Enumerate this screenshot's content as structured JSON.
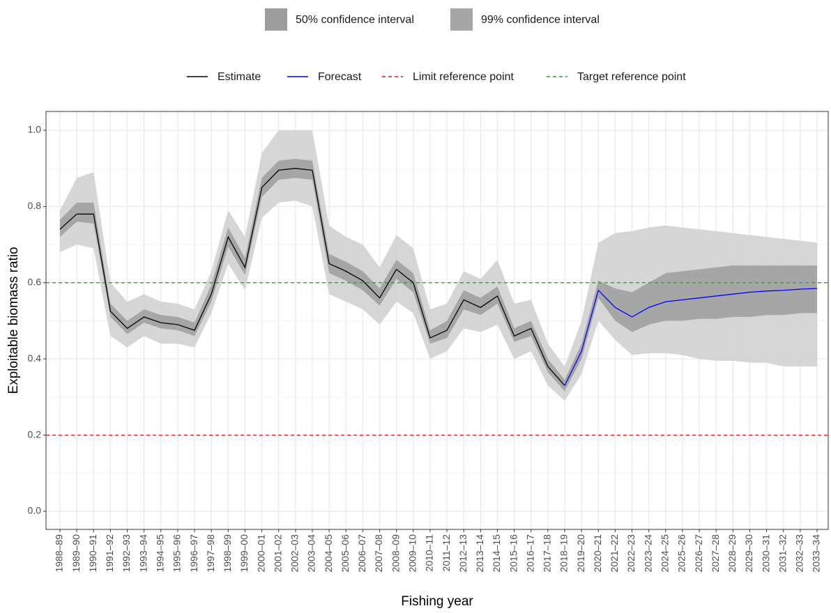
{
  "chart_data": {
    "type": "line",
    "x_label": "Fishing year",
    "y_label": "Exploitable biomass ratio",
    "categories": [
      "1988–89",
      "1989–90",
      "1990–91",
      "1991–92",
      "1992–93",
      "1993–94",
      "1994–95",
      "1995–96",
      "1996–97",
      "1997–98",
      "1998–99",
      "1999–00",
      "2000–01",
      "2001–02",
      "2002–03",
      "2003–04",
      "2004–05",
      "2005–06",
      "2006–07",
      "2007–08",
      "2008–09",
      "2009–10",
      "2010–11",
      "2011–12",
      "2012–13",
      "2013–14",
      "2014–15",
      "2015–16",
      "2016–17",
      "2017–18",
      "2018–19",
      "2019–20",
      "2020–21",
      "2021–22",
      "2022–23",
      "2023–24",
      "2024–25",
      "2025–26",
      "2026–27",
      "2027–28",
      "2028–29",
      "2029–30",
      "2030–31",
      "2031–32",
      "2032–33",
      "2033–34"
    ],
    "series": [
      {
        "name": "Estimate",
        "color": "#000000",
        "values": [
          0.74,
          0.78,
          0.78,
          0.525,
          0.48,
          0.51,
          0.495,
          0.49,
          0.475,
          0.57,
          0.72,
          0.64,
          0.85,
          0.895,
          0.9,
          0.895,
          0.65,
          0.63,
          0.605,
          0.56,
          0.635,
          0.6,
          0.455,
          0.475,
          0.555,
          0.535,
          0.565,
          0.46,
          0.48,
          0.38,
          0.33,
          null,
          null,
          null,
          null,
          null,
          null,
          null,
          null,
          null,
          null,
          null,
          null,
          null,
          null,
          null
        ]
      },
      {
        "name": "Forecast",
        "color": "#0000ff",
        "values": [
          null,
          null,
          null,
          null,
          null,
          null,
          null,
          null,
          null,
          null,
          null,
          null,
          null,
          null,
          null,
          null,
          null,
          null,
          null,
          null,
          null,
          null,
          null,
          null,
          null,
          null,
          null,
          null,
          null,
          null,
          0.33,
          0.42,
          0.58,
          0.535,
          0.51,
          0.535,
          0.55,
          0.555,
          0.56,
          0.565,
          0.57,
          0.575,
          0.578,
          0.58,
          0.583,
          0.585
        ]
      }
    ],
    "ribbons": [
      {
        "name": "99% confidence interval",
        "color": "#cfcfcf",
        "lower": [
          0.68,
          0.7,
          0.69,
          0.46,
          0.43,
          0.46,
          0.44,
          0.44,
          0.43,
          0.52,
          0.65,
          0.58,
          0.77,
          0.81,
          0.815,
          0.8,
          0.57,
          0.55,
          0.53,
          0.49,
          0.55,
          0.52,
          0.4,
          0.42,
          0.48,
          0.47,
          0.49,
          0.4,
          0.42,
          0.33,
          0.29,
          0.36,
          0.5,
          0.45,
          0.41,
          0.415,
          0.415,
          0.41,
          0.4,
          0.395,
          0.395,
          0.39,
          0.39,
          0.38,
          0.38,
          0.38
        ],
        "upper": [
          0.79,
          0.875,
          0.89,
          0.6,
          0.55,
          0.57,
          0.55,
          0.545,
          0.53,
          0.63,
          0.79,
          0.72,
          0.94,
          1.0,
          1.0,
          1.0,
          0.75,
          0.72,
          0.7,
          0.64,
          0.725,
          0.69,
          0.53,
          0.545,
          0.63,
          0.61,
          0.66,
          0.545,
          0.555,
          0.44,
          0.38,
          0.5,
          0.705,
          0.73,
          0.735,
          0.745,
          0.75,
          0.745,
          0.74,
          0.735,
          0.73,
          0.725,
          0.72,
          0.715,
          0.71,
          0.705
        ]
      },
      {
        "name": "50% confidence interval",
        "color": "#9e9e9e",
        "lower": [
          0.72,
          0.76,
          0.755,
          0.51,
          0.465,
          0.495,
          0.48,
          0.475,
          0.46,
          0.55,
          0.695,
          0.62,
          0.825,
          0.87,
          0.875,
          0.87,
          0.625,
          0.605,
          0.58,
          0.54,
          0.61,
          0.575,
          0.44,
          0.455,
          0.53,
          0.515,
          0.545,
          0.445,
          0.46,
          0.365,
          0.315,
          0.4,
          0.56,
          0.5,
          0.47,
          0.49,
          0.5,
          0.5,
          0.505,
          0.505,
          0.51,
          0.51,
          0.515,
          0.515,
          0.52,
          0.52
        ],
        "upper": [
          0.765,
          0.81,
          0.81,
          0.545,
          0.5,
          0.53,
          0.515,
          0.51,
          0.495,
          0.595,
          0.745,
          0.665,
          0.875,
          0.92,
          0.925,
          0.92,
          0.675,
          0.655,
          0.63,
          0.585,
          0.66,
          0.625,
          0.475,
          0.5,
          0.58,
          0.56,
          0.59,
          0.48,
          0.5,
          0.4,
          0.345,
          0.44,
          0.605,
          0.585,
          0.575,
          0.6,
          0.625,
          0.63,
          0.635,
          0.64,
          0.645,
          0.645,
          0.645,
          0.645,
          0.645,
          0.645
        ]
      }
    ],
    "reference_lines": [
      {
        "name": "Limit reference point",
        "value": 0.2,
        "color": "#e41a1c"
      },
      {
        "name": "Target reference point",
        "value": 0.6,
        "color": "#2ca02c"
      }
    ],
    "ylim": [
      -0.0475,
      1.0493
    ],
    "yticks": [
      {
        "value": 0,
        "label": "0.0"
      },
      {
        "value": 0.2,
        "label": "0.2"
      },
      {
        "value": 0.4,
        "label": "0.4"
      },
      {
        "value": 0.6,
        "label": "0.6"
      },
      {
        "value": 0.8,
        "label": "0.8"
      },
      {
        "value": 1,
        "label": "1.0"
      }
    ],
    "grid": true
  }
}
